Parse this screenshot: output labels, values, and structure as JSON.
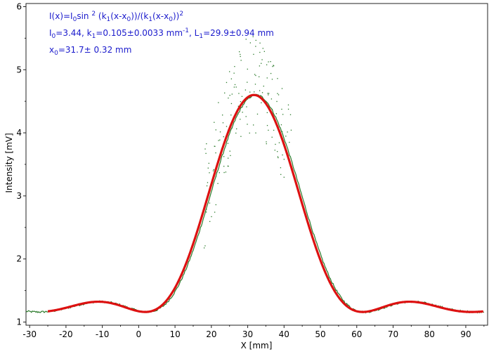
{
  "chart_data": {
    "type": "scatter",
    "xlabel": "X [mm]",
    "ylabel": "Intensity [mV]",
    "xlim": [
      -31,
      96
    ],
    "ylim": [
      0.95,
      6.05
    ],
    "xticks": [
      -30,
      -20,
      -10,
      0,
      10,
      20,
      30,
      40,
      50,
      60,
      70,
      80,
      90
    ],
    "yticks": [
      1,
      2,
      3,
      4,
      5,
      6
    ],
    "grid": false,
    "colors": {
      "fit": "#dd1111",
      "measured": "#2a7a2a",
      "annotation": "#1a1acc"
    },
    "fit_model": {
      "formula": "I(x)=I0 sin^2(k1(x-x0))/(k1(x-x0))^2",
      "I0": 3.44,
      "k1": 0.105,
      "x0": 31.7,
      "baseline": 1.16
    },
    "fit_x_range": [
      -25,
      95
    ],
    "measured_x_range": [
      -31,
      95
    ],
    "annotations": {
      "line1": {
        "a": "I(x)=I",
        "a_sub": "0",
        "b": "sin ",
        "b_sup": "2",
        "c": " (k",
        "c_sub": "1",
        "d": "(x-x",
        "d_sub": "0",
        "e": "))/(k",
        "e_sub": "1",
        "f": "(x-x",
        "f_sub": "0",
        "g": "))",
        "g_sup": "2"
      },
      "line2": {
        "a": "I",
        "a_sub": "0",
        "b": "=3.44,  k",
        "b_sub": "1",
        "c": "=0.105±0.0033 mm",
        "c_sup": "-1",
        "d": ",   L",
        "d_sub": "1",
        "e": "=29.9±0.94 mm"
      },
      "line3": {
        "a": "x",
        "a_sub": "0",
        "b": "=31.7±  0.32 mm"
      }
    }
  }
}
